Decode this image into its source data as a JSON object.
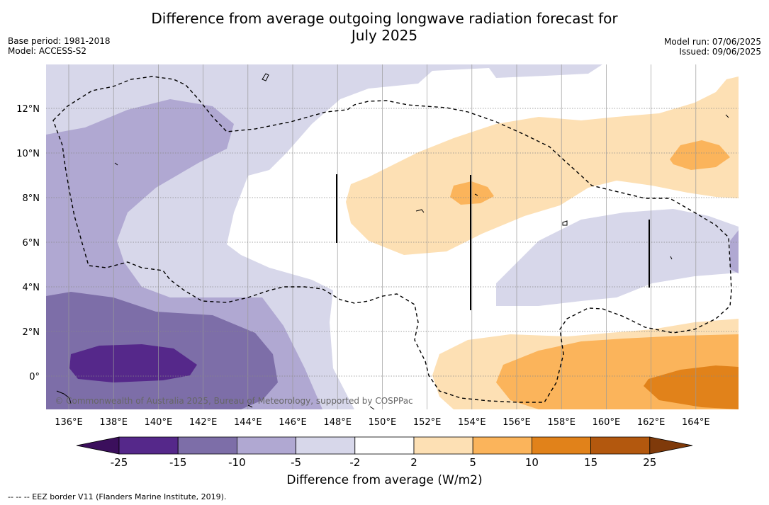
{
  "title_line1": "Difference from average outgoing longwave radiation forecast for",
  "title_line2": "July 2025",
  "meta_left": [
    "Base period: 1981-2018",
    "Model: ACCESS-S2"
  ],
  "meta_right": [
    "Model run: 07/06/2025",
    "Issued: 09/06/2025"
  ],
  "map": {
    "lon_labels": [
      "136°E",
      "138°E",
      "140°E",
      "142°E",
      "144°E",
      "146°E",
      "148°E",
      "150°E",
      "152°E",
      "154°E",
      "156°E",
      "158°E",
      "160°E",
      "162°E",
      "164°E"
    ],
    "lat_labels": [
      "12°N",
      "10°N",
      "8°N",
      "6°N",
      "4°N",
      "2°N",
      "0°"
    ],
    "copyright": "© Commonwealth of Australia 2025, Bureau of Meteorology, supported by COSPPac"
  },
  "colorbar": {
    "ticks": [
      "-25",
      "-15",
      "-10",
      "-5",
      "-2",
      "2",
      "5",
      "10",
      "15",
      "25"
    ],
    "colors": [
      "#3b0f5c",
      "#55288a",
      "#7d6ea8",
      "#b0a8d2",
      "#d7d7ea",
      "#ffffff",
      "#fde0b4",
      "#fbb45b",
      "#e1821a",
      "#b3580e",
      "#7f3a0a"
    ],
    "label": "Difference from average (W/m2)"
  },
  "footnote": "--  --  -- EEZ border V11 (Flanders Marine Institute, 2019)."
}
